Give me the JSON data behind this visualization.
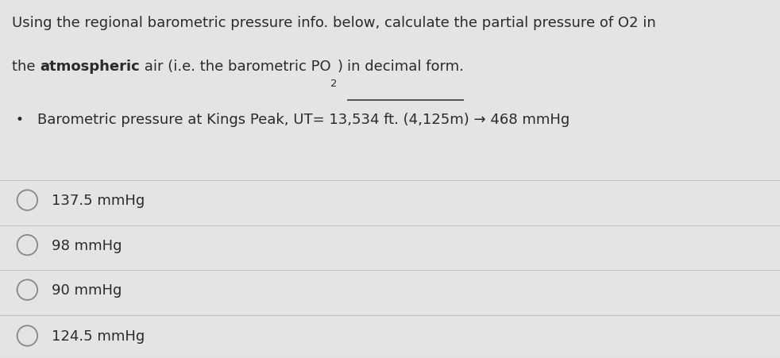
{
  "background_color": "#e4e4e4",
  "title_line1": "Using the regional barometric pressure info. below, calculate the partial pressure of O2 in",
  "bullet_text": "Barometric pressure at Kings Peak, UT= 13,534 ft. (4,125m) → 468 mmHg",
  "options": [
    "137.5 mmHg",
    "98 mmHg",
    "90 mmHg",
    "124.5 mmHg"
  ],
  "font_size_title": 13.0,
  "font_size_bullet": 13.0,
  "font_size_options": 13.0,
  "text_color": "#2a2a2a",
  "circle_color": "#888888",
  "line_color": "#c0c0c0"
}
